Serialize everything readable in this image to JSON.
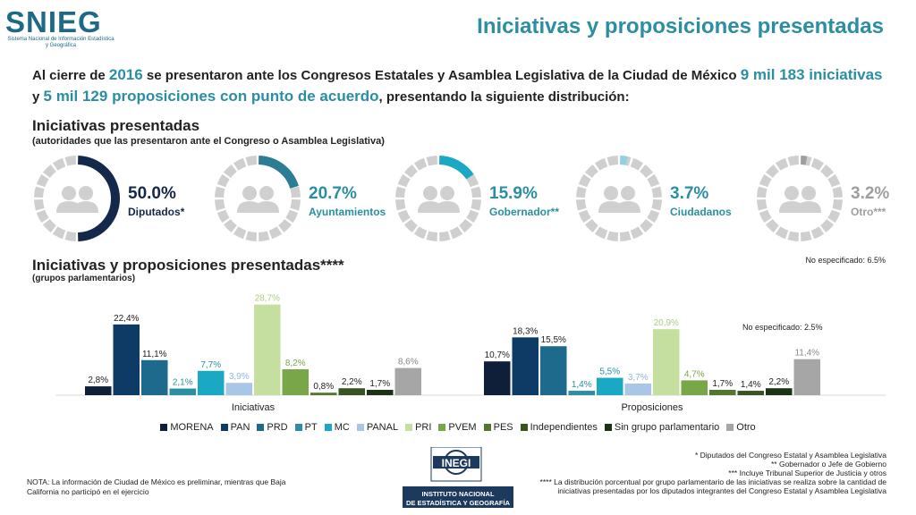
{
  "header": {
    "logo_text": "SNIEG",
    "logo_subtitle": "Sistema Nacional de Información Estadística y Geográfica",
    "title": "Iniciativas y proposiciones presentadas"
  },
  "intro": {
    "p1": "Al cierre de ",
    "year": "2016",
    "p2": " se presentaron ante los Congresos Estatales y Asamblea Legislativa de la Ciudad de México ",
    "initiatives": "9 mil 183 iniciativas",
    "p3": " y ",
    "propositions": "5 mil 129 proposiciones con punto de acuerdo",
    "p4": ", presentando la siguiente distribución:"
  },
  "section1": {
    "title": "Iniciativas presentadas",
    "subtitle": "(autoridades que las presentaron ante el Congreso o Asamblea Legislativa)"
  },
  "donuts": [
    {
      "percent": "50.0%",
      "value": 50.0,
      "label": "Diputados*",
      "color": "#14284b"
    },
    {
      "percent": "20.7%",
      "value": 20.7,
      "label": "Ayuntamientos",
      "color": "#2a7d93"
    },
    {
      "percent": "15.9%",
      "value": 15.9,
      "label": "Gobernador**",
      "color": "#1ba8c4"
    },
    {
      "percent": "3.7%",
      "value": 3.7,
      "label": "Ciudadanos",
      "color": "#92d1e3"
    },
    {
      "percent": "3.2%",
      "value": 3.2,
      "label": "Otro***",
      "color": "#9e9e9e"
    }
  ],
  "no_especificado_top": "No especificado: 6.5%",
  "section2": {
    "title": "Iniciativas y proposiciones presentadas****",
    "subtitle": "(grupos parlamentarios)"
  },
  "chart_data": {
    "type": "bar",
    "categories": [
      "Iniciativas",
      "Proposiciones"
    ],
    "series": [
      {
        "name": "MORENA",
        "values": [
          2.8,
          10.7
        ],
        "labels": [
          "2,8%",
          "10,7%"
        ],
        "color": "#0f1f3a"
      },
      {
        "name": "PAN",
        "values": [
          22.4,
          18.3
        ],
        "labels": [
          "22,4%",
          "18,3%"
        ],
        "color": "#0d3b66"
      },
      {
        "name": "PRD",
        "values": [
          11.1,
          15.5
        ],
        "labels": [
          "11,1%",
          "15,5%"
        ],
        "color": "#1d6a8c"
      },
      {
        "name": "PT",
        "values": [
          2.1,
          1.4
        ],
        "labels": [
          "2,1%",
          "1,4%"
        ],
        "color": "#2b8ea3"
      },
      {
        "name": "MC",
        "values": [
          7.7,
          5.5
        ],
        "labels": [
          "7,7%",
          "5,5%"
        ],
        "color": "#1ba8c4"
      },
      {
        "name": "PANAL",
        "values": [
          3.9,
          3.7
        ],
        "labels": [
          "3,9%",
          "3,7%"
        ],
        "color": "#a9c6e6"
      },
      {
        "name": "PRI",
        "values": [
          28.7,
          20.9
        ],
        "labels": [
          "28,7%",
          "20,9%"
        ],
        "color": "#c4dfa0"
      },
      {
        "name": "PVEM",
        "values": [
          8.2,
          4.7
        ],
        "labels": [
          "8,2%",
          "4,7%"
        ],
        "color": "#7aa64a"
      },
      {
        "name": "PES",
        "values": [
          0.8,
          1.7
        ],
        "labels": [
          "0,8%",
          "1,7%"
        ],
        "color": "#55762f"
      },
      {
        "name": "Independientes",
        "values": [
          2.2,
          1.4
        ],
        "labels": [
          "2,2%",
          "1,4%"
        ],
        "color": "#3a5323"
      },
      {
        "name": "Sin grupo parlamentario",
        "values": [
          1.7,
          2.2
        ],
        "labels": [
          "1,7%",
          "2,2%"
        ],
        "color": "#1c3216"
      },
      {
        "name": "Otro",
        "values": [
          8.6,
          11.4
        ],
        "labels": [
          "8,6%",
          "11,4%"
        ],
        "color": "#a6a6a6"
      }
    ],
    "annotation": "No especificado: 2.5%",
    "ylim": [
      0,
      30
    ]
  },
  "footnotes": [
    "* Diputados del Congreso Estatal y Asamblea Legislativa",
    "** Gobernador o Jefe de Gobierno",
    "*** Incluye Tribunal Superior de Justicia y otros",
    "**** La distribución porcentual por grupo parlamentario de las iniciativas se realiza sobre la cantidad de iniciativas presentadas por los diputados integrantes del Congreso Estatal y Asamblea Legislativa"
  ],
  "nota": "NOTA: La información de Ciudad de México es preliminar, mientras que Baja California no participó en el ejercicio",
  "inegi": {
    "logo_text": "INEGI",
    "name_line1": "INSTITUTO NACIONAL",
    "name_line2": "DE ESTADÍSTICA Y GEOGRAFÍA"
  }
}
